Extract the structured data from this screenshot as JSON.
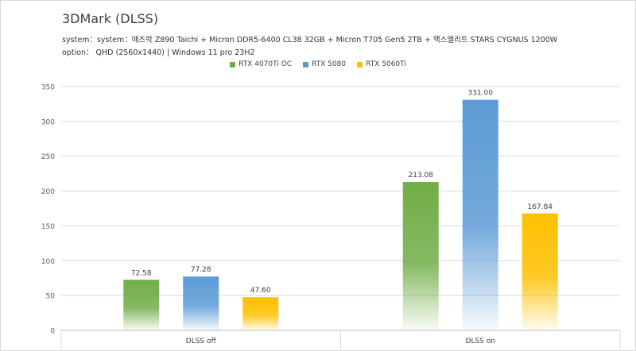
{
  "chart_data": {
    "type": "bar",
    "title": "3DMark (DLSS)",
    "system_text": "system：system：애즈락 Z890 Taichi + Micron DDR5-6400 CL38 32GB + Micron T705 Gen5 2TB + 맥스엘리트 STARS CYGNUS 1200W",
    "option_text": "option： QHD (2560x1440) | Windows 11 pro 23H2",
    "categories": [
      "DLSS off",
      "DLSS on"
    ],
    "series": [
      {
        "name": "RTX 4070Ti OC",
        "values": [
          72.58,
          213.08
        ],
        "labels": [
          "72.58",
          "213.08"
        ],
        "color": "#70ad47"
      },
      {
        "name": "RTX 5080",
        "values": [
          77.28,
          331.0
        ],
        "labels": [
          "77.28",
          "331.00"
        ],
        "color": "#5b9bd5"
      },
      {
        "name": "RTX 5060Ti",
        "values": [
          47.6,
          167.84
        ],
        "labels": [
          "47.60",
          "167.84"
        ],
        "color": "#ffc000"
      }
    ],
    "ylim": [
      0,
      350
    ],
    "yticks": [
      "0",
      "50",
      "100",
      "150",
      "200",
      "250",
      "300",
      "350"
    ],
    "grid": true,
    "legend_position": "top-center"
  }
}
